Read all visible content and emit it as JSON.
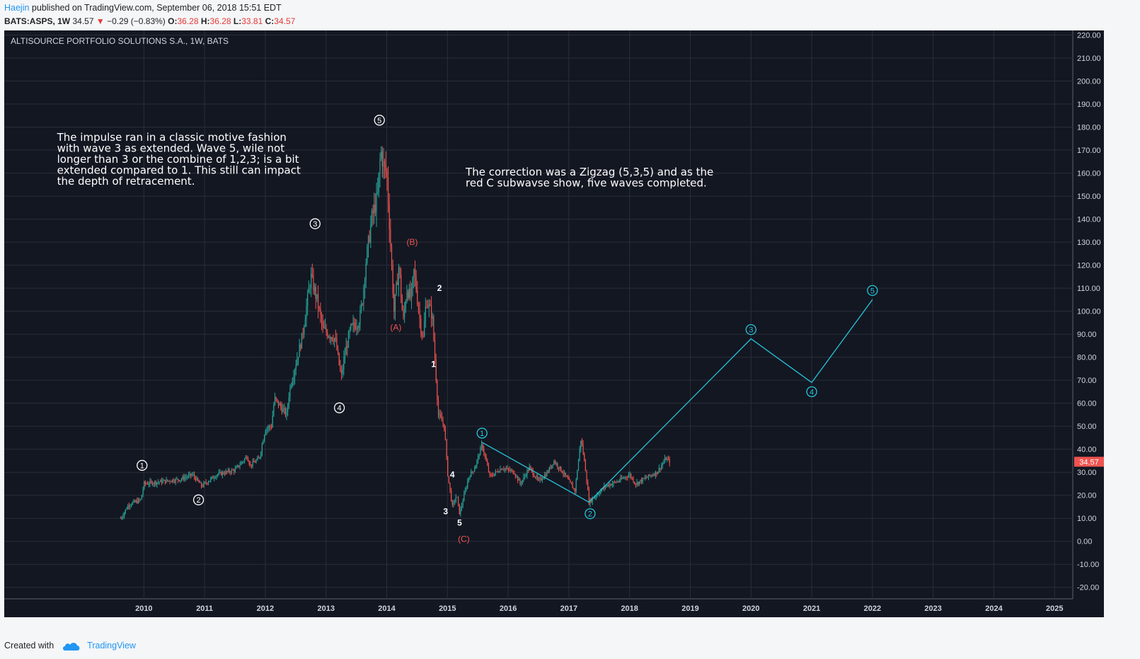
{
  "header": {
    "author": "Haejin",
    "published": "published on TradingView.com, September 06, 2018 15:51 EDT",
    "symbol": "BATS:ASPS, 1W",
    "last": "34.57",
    "change": "−0.29 (−0.83%)",
    "o_label": "O:",
    "open": "36.28",
    "h_label": "H:",
    "high": "36.28",
    "l_label": "L:",
    "low": "33.81",
    "c_label": "C:",
    "close": "34.57"
  },
  "footer": {
    "created_with": "Created with",
    "brand": "TradingView"
  },
  "colors": {
    "bg": "#131722",
    "grid": "#2a2e39",
    "up": "#26a69a",
    "down": "#ef5350",
    "projection": "#26c6da",
    "text": "#ffffff",
    "red_label": "#ef5350"
  },
  "chart_data": {
    "type": "candlestick",
    "title": "ALTISOURCE PORTFOLIO SOLUTIONS S.A., 1W, BATS",
    "x_range": [
      2007.7,
      2025.3
    ],
    "ylim": [
      -25,
      222
    ],
    "x_ticks": [
      "2010",
      "2011",
      "2012",
      "2013",
      "2014",
      "2015",
      "2016",
      "2017",
      "2018",
      "2019",
      "2020",
      "2021",
      "2022",
      "2023",
      "2024",
      "2025"
    ],
    "y_ticks": [
      "220.00",
      "210.00",
      "200.00",
      "190.00",
      "180.00",
      "170.00",
      "160.00",
      "150.00",
      "140.00",
      "130.00",
      "120.00",
      "110.00",
      "100.00",
      "90.00",
      "80.00",
      "70.00",
      "60.00",
      "50.00",
      "40.00",
      "30.00",
      "20.00",
      "10.00",
      "0.00",
      "-10.00",
      "-20.00"
    ],
    "last_price_label": "34.57",
    "last_price": 34.57,
    "price_path": [
      [
        2009.62,
        10
      ],
      [
        2009.75,
        16
      ],
      [
        2009.95,
        18
      ],
      [
        2010.0,
        25
      ],
      [
        2010.3,
        26
      ],
      [
        2010.6,
        27
      ],
      [
        2010.8,
        29
      ],
      [
        2010.95,
        24
      ],
      [
        2011.2,
        29
      ],
      [
        2011.5,
        31
      ],
      [
        2011.7,
        37
      ],
      [
        2011.75,
        33
      ],
      [
        2011.9,
        36
      ],
      [
        2012.0,
        49
      ],
      [
        2012.1,
        50
      ],
      [
        2012.15,
        62
      ],
      [
        2012.35,
        55
      ],
      [
        2012.4,
        66
      ],
      [
        2012.6,
        88
      ],
      [
        2012.75,
        115
      ],
      [
        2012.85,
        105
      ],
      [
        2012.95,
        92
      ],
      [
        2013.15,
        88
      ],
      [
        2013.25,
        71
      ],
      [
        2013.3,
        80
      ],
      [
        2013.4,
        92
      ],
      [
        2013.55,
        96
      ],
      [
        2013.6,
        105
      ],
      [
        2013.65,
        120
      ],
      [
        2013.75,
        140
      ],
      [
        2013.85,
        150
      ],
      [
        2013.9,
        170
      ],
      [
        2013.95,
        163
      ],
      [
        2014.0,
        160
      ],
      [
        2014.05,
        135
      ],
      [
        2014.12,
        100
      ],
      [
        2014.2,
        120
      ],
      [
        2014.27,
        95
      ],
      [
        2014.33,
        110
      ],
      [
        2014.4,
        105
      ],
      [
        2014.45,
        118
      ],
      [
        2014.55,
        95
      ],
      [
        2014.6,
        88
      ],
      [
        2014.65,
        105
      ],
      [
        2014.75,
        98
      ],
      [
        2014.85,
        55
      ],
      [
        2014.95,
        50
      ],
      [
        2015.0,
        30
      ],
      [
        2015.08,
        15
      ],
      [
        2015.15,
        20
      ],
      [
        2015.2,
        12
      ],
      [
        2015.35,
        28
      ],
      [
        2015.45,
        32
      ],
      [
        2015.57,
        42
      ],
      [
        2015.7,
        28
      ],
      [
        2015.9,
        32
      ],
      [
        2016.1,
        30
      ],
      [
        2016.2,
        25
      ],
      [
        2016.35,
        32
      ],
      [
        2016.5,
        26
      ],
      [
        2016.65,
        30
      ],
      [
        2016.75,
        35
      ],
      [
        2016.9,
        30
      ],
      [
        2017.0,
        26
      ],
      [
        2017.1,
        22
      ],
      [
        2017.2,
        45
      ],
      [
        2017.28,
        30
      ],
      [
        2017.33,
        17
      ],
      [
        2017.45,
        20
      ],
      [
        2017.6,
        24
      ],
      [
        2017.8,
        26
      ],
      [
        2018.0,
        29
      ],
      [
        2018.1,
        25
      ],
      [
        2018.3,
        28
      ],
      [
        2018.45,
        30
      ],
      [
        2018.6,
        36
      ],
      [
        2018.66,
        34.57
      ]
    ],
    "projection": [
      [
        2015.57,
        43
      ],
      [
        2017.33,
        17
      ],
      [
        2020.0,
        88
      ],
      [
        2021.0,
        69
      ],
      [
        2022.0,
        105
      ]
    ],
    "wave_labels": [
      {
        "text": "1",
        "x": 2009.97,
        "y": 33,
        "circled": true,
        "color": "white"
      },
      {
        "text": "2",
        "x": 2010.9,
        "y": 18,
        "circled": true,
        "color": "white"
      },
      {
        "text": "3",
        "x": 2012.82,
        "y": 138,
        "circled": true,
        "color": "white"
      },
      {
        "text": "4",
        "x": 2013.22,
        "y": 58,
        "circled": true,
        "color": "white"
      },
      {
        "text": "5",
        "x": 2013.88,
        "y": 183,
        "circled": true,
        "color": "white"
      },
      {
        "text": "(A)",
        "x": 2014.15,
        "y": 93,
        "circled": false,
        "color": "red"
      },
      {
        "text": "(B)",
        "x": 2014.42,
        "y": 130,
        "circled": false,
        "color": "red"
      },
      {
        "text": "(C)",
        "x": 2015.27,
        "y": 1,
        "circled": false,
        "color": "red"
      },
      {
        "text": "1",
        "x": 2014.77,
        "y": 77,
        "circled": false,
        "color": "white"
      },
      {
        "text": "2",
        "x": 2014.87,
        "y": 110,
        "circled": false,
        "color": "white"
      },
      {
        "text": "3",
        "x": 2014.97,
        "y": 13,
        "circled": false,
        "color": "white"
      },
      {
        "text": "4",
        "x": 2015.08,
        "y": 29,
        "circled": false,
        "color": "white"
      },
      {
        "text": "5",
        "x": 2015.2,
        "y": 8,
        "circled": false,
        "color": "white"
      },
      {
        "text": "1",
        "x": 2015.57,
        "y": 47,
        "circled": true,
        "color": "cyan"
      },
      {
        "text": "2",
        "x": 2017.35,
        "y": 12,
        "circled": true,
        "color": "cyan"
      },
      {
        "text": "3",
        "x": 2020.0,
        "y": 92,
        "circled": true,
        "color": "cyan"
      },
      {
        "text": "4",
        "x": 2021.0,
        "y": 65,
        "circled": true,
        "color": "cyan"
      },
      {
        "text": "5",
        "x": 2022.0,
        "y": 109,
        "circled": true,
        "color": "cyan"
      }
    ],
    "annotations": [
      {
        "lines": [
          "The impulse ran in a classic motive fashion",
          "with wave 3 as extended. Wave 5, wile not",
          "longer than 3 or the combine of 1,2,3; is a bit",
          "extended compared to 1. This still can impact",
          "the depth of retracement."
        ],
        "x": 2008.57,
        "y": 174
      },
      {
        "lines": [
          "The correction was a Zigzag (5,3,5) and as the",
          "red C subwavse show, five waves completed."
        ],
        "x": 2015.3,
        "y": 159
      }
    ]
  }
}
